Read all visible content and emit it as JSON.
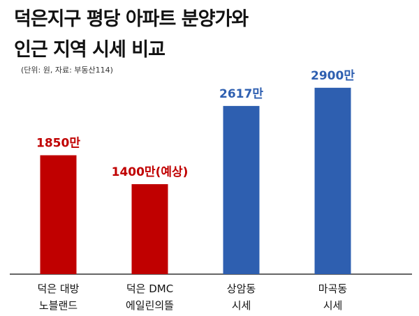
{
  "header": {
    "title_line1": "덕은지구 평당 아파트 분양가와",
    "title_line2": "인근 지역 시세 비교",
    "source_note": "(단위: 원, 자료: 부동산114)"
  },
  "colors": {
    "red": "#C00000",
    "blue": "#2E5FB0",
    "axis": "#333333",
    "text": "#111111"
  },
  "chart_data": {
    "type": "bar",
    "title": "덕은지구 평당 아파트 분양가와 인근 지역 시세 비교",
    "unit_note": "(단위: 원, 자료: 부동산114)",
    "categories": [
      [
        "덕은 대방",
        "노블랜드"
      ],
      [
        "덕은 DMC",
        "에일린의뜰"
      ],
      [
        "상암동",
        "시세"
      ],
      [
        "마곡동",
        "시세"
      ]
    ],
    "values": [
      1850,
      1400,
      2617,
      2900
    ],
    "value_labels": [
      "1850만",
      "1400만(예상)",
      "2617만",
      "2900만"
    ],
    "bar_colors": [
      "#C00000",
      "#C00000",
      "#2E5FB0",
      "#2E5FB0"
    ],
    "ylim": [
      0,
      3050
    ],
    "grid": false,
    "xlabel": "",
    "ylabel": ""
  }
}
